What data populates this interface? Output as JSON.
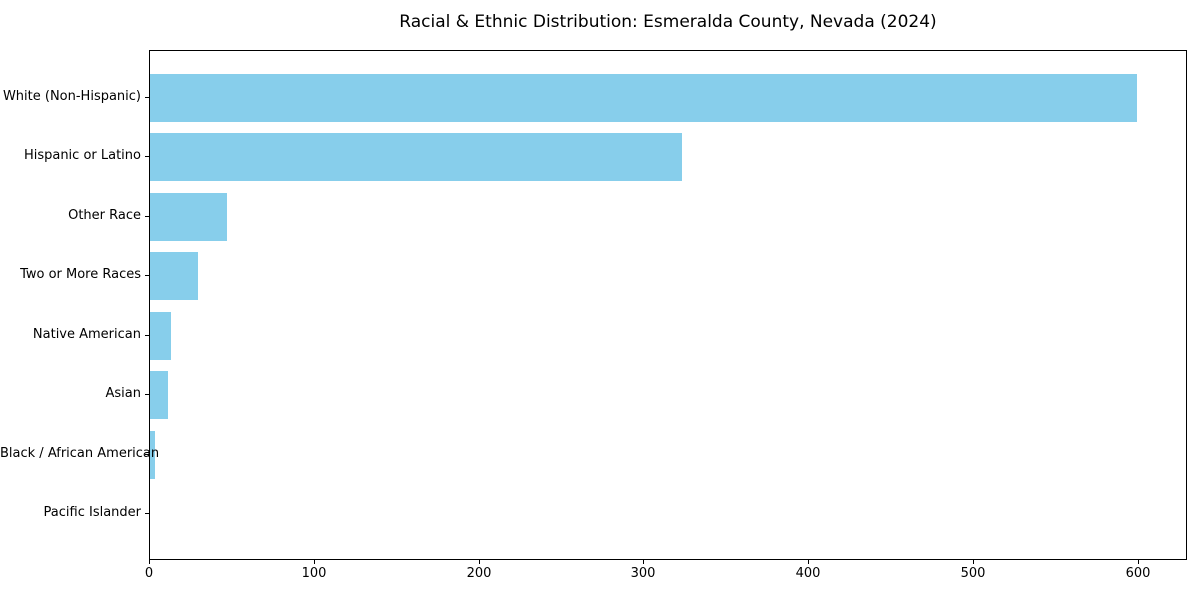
{
  "chart_data": {
    "type": "bar",
    "orientation": "horizontal",
    "title": "Racial & Ethnic Distribution: Esmeralda County, Nevada (2024)",
    "categories": [
      "White (Non-Hispanic)",
      "Hispanic or Latino",
      "Other Race",
      "Two or More Races",
      "Native American",
      "Asian",
      "Black / African American",
      "Pacific Islander"
    ],
    "values": [
      599,
      323,
      47,
      29,
      13,
      11,
      3,
      0
    ],
    "xlabel": "",
    "ylabel": "",
    "xlim": [
      0,
      630
    ],
    "xticks": [
      0,
      100,
      200,
      300,
      400,
      500,
      600
    ],
    "bar_color": "#87CEEB",
    "spine_color": "#000000",
    "text_color": "#000000",
    "grid": false,
    "legend": null
  }
}
